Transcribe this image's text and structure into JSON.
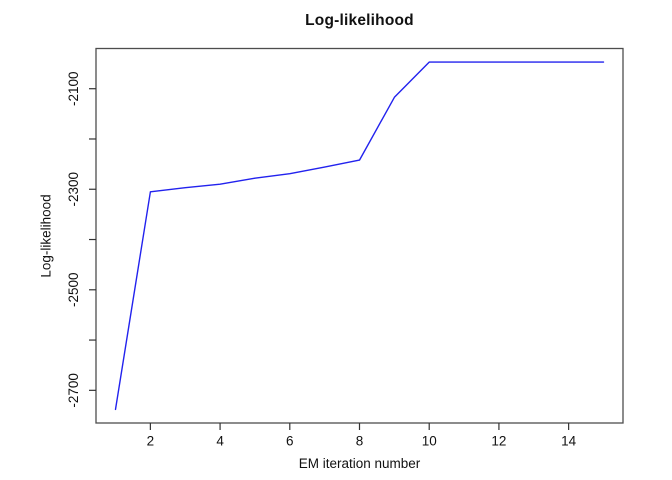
{
  "chart_data": {
    "type": "line",
    "title": "Log-likelihood",
    "xlabel": "EM iteration number",
    "ylabel": "Log-likelihood",
    "series": [
      {
        "name": "log-likelihood",
        "x": [
          1,
          2,
          3,
          4,
          5,
          6,
          7,
          8,
          9,
          10,
          11,
          12,
          13,
          14,
          15
        ],
        "y": [
          -2738,
          -2305,
          -2297,
          -2290,
          -2278,
          -2269,
          -2256,
          -2242,
          -2117,
          -2047,
          -2047,
          -2047,
          -2047,
          -2047,
          -2047
        ],
        "color": "#2222ee"
      }
    ],
    "xlim": [
      0.44,
      15.56
    ],
    "ylim": [
      -2765,
      -2020
    ],
    "x_ticks": [
      {
        "value": 2,
        "label": "2"
      },
      {
        "value": 4,
        "label": "4"
      },
      {
        "value": 6,
        "label": "6"
      },
      {
        "value": 8,
        "label": "8"
      },
      {
        "value": 10,
        "label": "10"
      },
      {
        "value": 12,
        "label": "12"
      },
      {
        "value": 14,
        "label": "14"
      }
    ],
    "y_ticks": [
      {
        "value": -2700,
        "label": "-2700"
      },
      {
        "value": -2600,
        "label": ""
      },
      {
        "value": -2500,
        "label": "-2500"
      },
      {
        "value": -2400,
        "label": ""
      },
      {
        "value": -2300,
        "label": "-2300"
      },
      {
        "value": -2200,
        "label": ""
      },
      {
        "value": -2100,
        "label": "-2100"
      }
    ],
    "grid": "off",
    "legend": "none",
    "box_color": "#4d4d4d",
    "tick_color": "#333333"
  }
}
